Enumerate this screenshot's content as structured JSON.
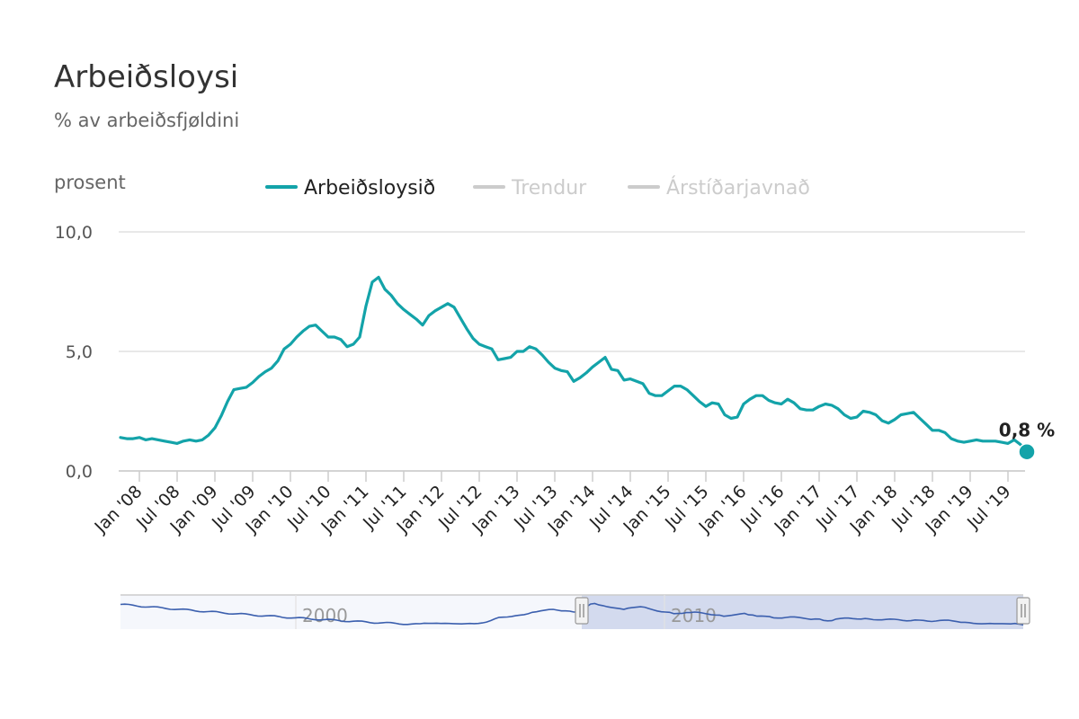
{
  "title": "Arbeiðsloysi",
  "subtitle": "% av arbeiðsfjøldini",
  "legend": [
    {
      "label": "Arbeiðsloysið",
      "color": "#13A3A9",
      "active": true
    },
    {
      "label": "Trendur",
      "color": "#CCCCCC",
      "active": false
    },
    {
      "label": "Árstíðarjavnað",
      "color": "#CCCCCC",
      "active": false
    }
  ],
  "end_label": "0,8 %",
  "navigator": {
    "labels": [
      "2000",
      "2010"
    ],
    "line_color": "#3B5FAE",
    "selection_color": "#D3DAEE"
  },
  "chart_data": {
    "type": "line",
    "ylabel": "prosent",
    "ylim": [
      0,
      10
    ],
    "y_ticks": [
      0,
      5,
      10
    ],
    "y_tick_labels": [
      "0,0",
      "5,0",
      "10,0"
    ],
    "x_tick_labels": [
      "Jan '08",
      "Jul '08",
      "Jan '09",
      "Jul '09",
      "Jan '10",
      "Jul '10",
      "Jan '11",
      "Jul '11",
      "Jan '12",
      "Jul '12",
      "Jan '13",
      "Jul '13",
      "Jan '14",
      "Jul '14",
      "Jan '15",
      "Jul '15",
      "Jan '16",
      "Jul '16",
      "Jan '17",
      "Jul '17",
      "Jan '18",
      "Jul '18",
      "Jan '19",
      "Jul '19"
    ],
    "x_start": "2008-01",
    "grid": true,
    "legend_position": "top",
    "series": [
      {
        "name": "Arbeiðsloysið",
        "color": "#13A3A9",
        "values": [
          1.4,
          1.35,
          1.35,
          1.4,
          1.3,
          1.35,
          1.3,
          1.25,
          1.2,
          1.15,
          1.25,
          1.3,
          1.25,
          1.3,
          1.5,
          1.8,
          2.3,
          2.9,
          3.4,
          3.45,
          3.5,
          3.7,
          3.95,
          4.15,
          4.3,
          4.6,
          5.1,
          5.3,
          5.6,
          5.85,
          6.05,
          6.1,
          5.85,
          5.6,
          5.6,
          5.5,
          5.2,
          5.3,
          5.6,
          6.9,
          7.9,
          8.1,
          7.6,
          7.35,
          7.0,
          6.75,
          6.55,
          6.35,
          6.1,
          6.5,
          6.7,
          6.85,
          7.0,
          6.85,
          6.4,
          5.95,
          5.55,
          5.3,
          5.2,
          5.1,
          4.65,
          4.7,
          4.75,
          5.0,
          5.0,
          5.2,
          5.1,
          4.85,
          4.55,
          4.3,
          4.2,
          4.15,
          3.75,
          3.9,
          4.1,
          4.35,
          4.55,
          4.75,
          4.25,
          4.2,
          3.8,
          3.85,
          3.75,
          3.65,
          3.25,
          3.15,
          3.15,
          3.35,
          3.55,
          3.55,
          3.4,
          3.15,
          2.9,
          2.7,
          2.85,
          2.8,
          2.35,
          2.2,
          2.25,
          2.8,
          3.0,
          3.15,
          3.15,
          2.95,
          2.85,
          2.8,
          3.0,
          2.85,
          2.6,
          2.55,
          2.55,
          2.7,
          2.8,
          2.75,
          2.6,
          2.35,
          2.2,
          2.25,
          2.5,
          2.45,
          2.35,
          2.1,
          2.0,
          2.15,
          2.35,
          2.4,
          2.45,
          2.2,
          1.95,
          1.7,
          1.7,
          1.6,
          1.35,
          1.25,
          1.2,
          1.25,
          1.3,
          1.25,
          1.25,
          1.25,
          1.2,
          1.15,
          1.3,
          1.1,
          0.8
        ]
      }
    ]
  }
}
